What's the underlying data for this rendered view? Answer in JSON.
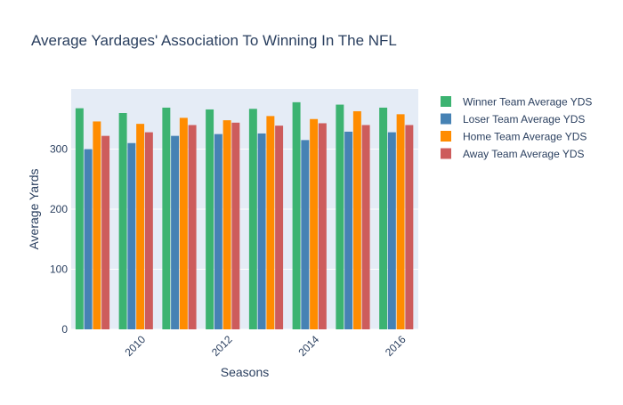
{
  "chart_data": {
    "type": "bar",
    "title": "Average Yardages' Association To Winning In The NFL",
    "xlabel": "Seasons",
    "ylabel": "Average Yards",
    "x": [
      2009,
      2010,
      2011,
      2012,
      2013,
      2014,
      2015,
      2016
    ],
    "x_tick_values": [
      2010,
      2012,
      2014,
      2016
    ],
    "x_tick_labels": [
      "2010",
      "2012",
      "2014",
      "2016"
    ],
    "ylim": [
      0,
      400
    ],
    "y_tick_values": [
      0,
      100,
      200,
      300
    ],
    "y_tick_labels": [
      "0",
      "100",
      "200",
      "300"
    ],
    "grid": true,
    "legend_position": "right",
    "background_color": "#e5ecf6",
    "series": [
      {
        "name": "Winner Team Average YDS",
        "color": "#3cb371",
        "values": [
          368,
          360,
          369,
          366,
          367,
          378,
          374,
          369
        ]
      },
      {
        "name": "Loser Team Average YDS",
        "color": "#4682b4",
        "values": [
          300,
          310,
          322,
          325,
          326,
          315,
          329,
          328
        ]
      },
      {
        "name": "Home Team Average YDS",
        "color": "#ff8c00",
        "values": [
          346,
          342,
          352,
          348,
          355,
          350,
          363,
          358
        ]
      },
      {
        "name": "Away Team Average YDS",
        "color": "#cd5c5c",
        "values": [
          322,
          328,
          340,
          344,
          339,
          343,
          340,
          340
        ]
      }
    ]
  }
}
